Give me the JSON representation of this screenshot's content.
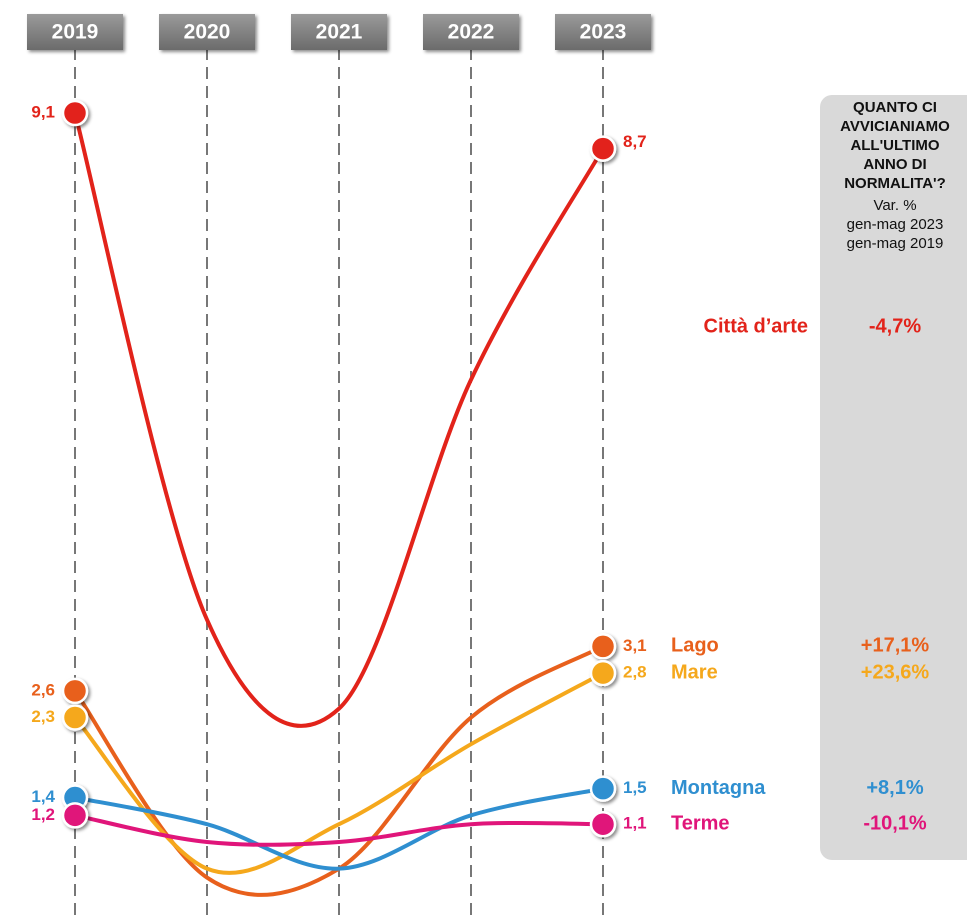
{
  "chart_data": {
    "type": "line",
    "categories": [
      "2019",
      "2020",
      "2021",
      "2022",
      "2023"
    ],
    "panel": {
      "title": [
        "QUANTO CI",
        "AVVICIANIAMO",
        "ALL'ULTIMO",
        "ANNO DI",
        "NORMALITA'?"
      ],
      "subtitle": [
        "Var. %",
        "gen-mag 2023",
        "gen-mag 2019"
      ]
    },
    "series": [
      {
        "name": "Città d’arte",
        "color": "#e2231a",
        "values": [
          9.1,
          3.4,
          2.4,
          6.1,
          8.7
        ],
        "value_labels": [
          "9,1",
          null,
          null,
          null,
          "8,7"
        ],
        "change": "-4,7%"
      },
      {
        "name": "Lago",
        "color": "#e8601c",
        "values": [
          2.6,
          0.5,
          0.6,
          2.3,
          3.1
        ],
        "value_labels": [
          "2,6",
          null,
          null,
          null,
          "3,1"
        ],
        "change": "+17,1%"
      },
      {
        "name": "Mare",
        "color": "#f5a81c",
        "values": [
          2.3,
          0.6,
          1.1,
          2.0,
          2.8
        ],
        "value_labels": [
          "2,3",
          null,
          null,
          null,
          "2,8"
        ],
        "change": "+23,6%"
      },
      {
        "name": "Montagna",
        "color": "#2f8fd0",
        "values": [
          1.4,
          1.1,
          0.6,
          1.2,
          1.5
        ],
        "value_labels": [
          "1,4",
          null,
          null,
          null,
          "1,5"
        ],
        "change": "+8,1%"
      },
      {
        "name": "Terme",
        "color": "#e0157a",
        "values": [
          1.2,
          0.9,
          0.9,
          1.1,
          1.1
        ],
        "value_labels": [
          "1,2",
          null,
          null,
          null,
          "1,1"
        ],
        "change": "-10,1%"
      }
    ]
  }
}
